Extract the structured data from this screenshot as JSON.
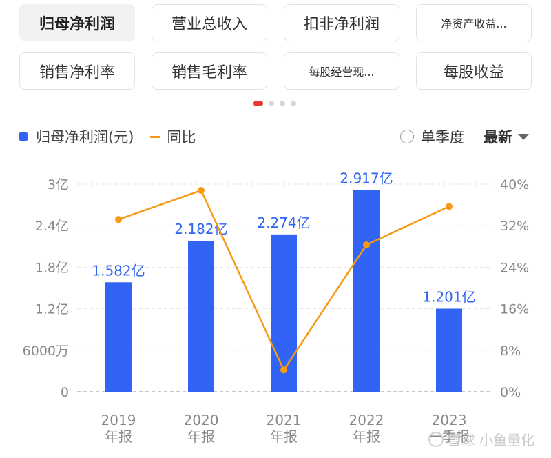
{
  "tabs": {
    "row1": [
      "归母净利润",
      "营业总收入",
      "扣非净利润",
      "净资产收益..."
    ],
    "row2": [
      "销售净利率",
      "销售毛利率",
      "每股经营现...",
      "每股收益"
    ],
    "active_index": 0
  },
  "legend": {
    "bar_label": "归母净利润(元)",
    "line_label": "同比"
  },
  "controls": {
    "quarter_label": "单季度",
    "sort_label": "最新"
  },
  "colors": {
    "bar": "#3164f4",
    "line": "#f59a12",
    "indicator": "#e8382f"
  },
  "chart_data": {
    "type": "bar",
    "categories": [
      "2019\n年报",
      "2020\n年报",
      "2021\n年报",
      "2022\n年报",
      "2023\n一季报"
    ],
    "series": [
      {
        "values": [
          1.582,
          2.182,
          2.274,
          2.917,
          1.201
        ],
        "labels": [
          "1.582亿",
          "2.182亿",
          "2.274亿",
          "2.917亿",
          "1.201亿"
        ]
      },
      {
        "values": [
          33.2,
          38.8,
          4.2,
          28.3,
          35.7
        ]
      }
    ],
    "y_left": {
      "ticks": [
        0,
        0.6,
        1.2,
        1.8,
        2.4,
        3.0
      ],
      "tick_labels": [
        "0",
        "6000万",
        "1.2亿",
        "1.8亿",
        "2.4亿",
        "3亿"
      ],
      "range": [
        0,
        3
      ]
    },
    "y_right": {
      "ticks": [
        0,
        8,
        16,
        24,
        32,
        40
      ],
      "tick_labels": [
        "0%",
        "8%",
        "16%",
        "24%",
        "32%",
        "40%"
      ],
      "range": [
        0,
        40
      ]
    },
    "grid": true
  },
  "watermark": "雪球 小鱼量化"
}
